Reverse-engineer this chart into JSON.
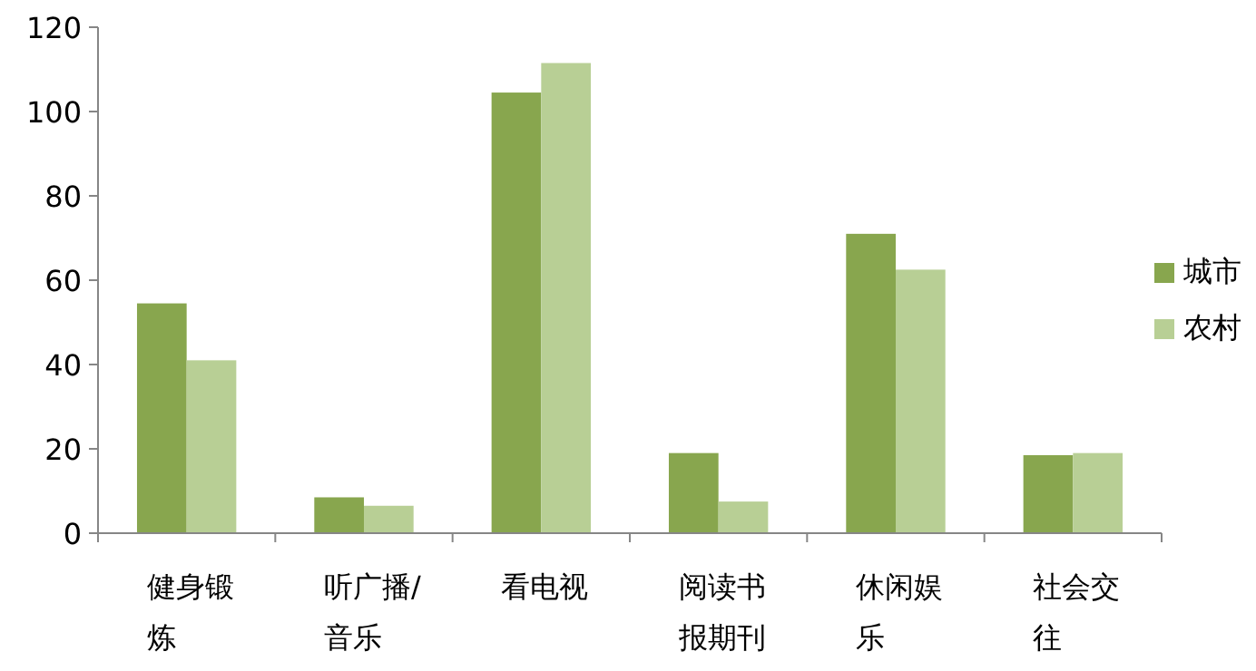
{
  "chart_data": {
    "type": "bar",
    "categories": [
      "健身锻炼",
      "听广播/音乐",
      "看电视",
      "阅读书报期刊",
      "休闲娱乐",
      "社会交往"
    ],
    "series": [
      {
        "name": "城市",
        "color": "#88a64e",
        "values": [
          54.5,
          8.5,
          104.5,
          19,
          71,
          18.5
        ]
      },
      {
        "name": "农村",
        "color": "#b8cf95",
        "values": [
          41,
          6.5,
          111.5,
          7.5,
          62.5,
          19
        ]
      }
    ],
    "ylim": [
      0,
      120
    ],
    "yticks": [
      0,
      20,
      40,
      60,
      80,
      100,
      120
    ],
    "grid": false,
    "legend": "right"
  }
}
